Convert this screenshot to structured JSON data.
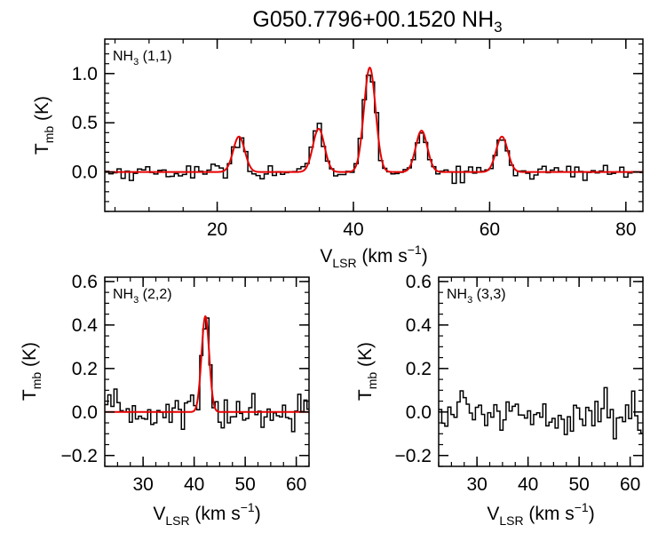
{
  "title": {
    "main": "G050.7796+00.1520 NH",
    "sub": "3"
  },
  "colors": {
    "data": "#000000",
    "fit": "#e60000",
    "axes": "#000000"
  },
  "chart_data": [
    {
      "type": "line",
      "panel": "top",
      "label": {
        "species": "NH",
        "sub": "3",
        "transition": "(1,1)"
      },
      "xlabel": {
        "main": "V",
        "sub": "LSR",
        "unit": "(km s",
        "exp": "−1",
        "close": ")"
      },
      "ylabel": {
        "main": "T",
        "sub": "mb",
        "unit": "(K)"
      },
      "xlim": [
        3.5,
        82.5
      ],
      "ylim": [
        -0.4,
        1.35
      ],
      "xticks": [
        20,
        40,
        60,
        80
      ],
      "xtick_labels": [
        "20",
        "40",
        "60",
        "80"
      ],
      "yticks": [
        0.0,
        0.5,
        1.0
      ],
      "ytick_labels": [
        "0.0",
        "0.5",
        "1.0"
      ],
      "x_minor": 5,
      "y_minor": 0.1,
      "noise_sigma": 0.04,
      "channel_width": 0.6,
      "fit_components": [
        {
          "center": 23.2,
          "amplitude": 0.36,
          "sigma": 0.85
        },
        {
          "center": 34.9,
          "amplitude": 0.44,
          "sigma": 0.85
        },
        {
          "center": 42.4,
          "amplitude": 1.06,
          "sigma": 0.85
        },
        {
          "center": 50.0,
          "amplitude": 0.42,
          "sigma": 0.85
        },
        {
          "center": 61.8,
          "amplitude": 0.36,
          "sigma": 0.85
        }
      ]
    },
    {
      "type": "line",
      "panel": "bottom-left",
      "label": {
        "species": "NH",
        "sub": "3",
        "transition": "(2,2)"
      },
      "xlabel": {
        "main": "V",
        "sub": "LSR",
        "unit": "(km s",
        "exp": "−1",
        "close": ")"
      },
      "ylabel": {
        "main": "T",
        "sub": "mb",
        "unit": "(K)"
      },
      "xlim": [
        22.5,
        62.5
      ],
      "ylim": [
        -0.25,
        0.62
      ],
      "xticks": [
        30,
        40,
        50,
        60
      ],
      "xtick_labels": [
        "30",
        "40",
        "50",
        "60"
      ],
      "yticks": [
        -0.2,
        0.0,
        0.2,
        0.4,
        0.6
      ],
      "ytick_labels": [
        "−0.2",
        "0.0",
        "0.2",
        "0.4",
        "0.6"
      ],
      "x_minor": 2.5,
      "y_minor": 0.05,
      "noise_sigma": 0.045,
      "channel_width": 0.6,
      "fit_components": [
        {
          "center": 42.2,
          "amplitude": 0.44,
          "sigma": 0.75
        }
      ]
    },
    {
      "type": "line",
      "panel": "bottom-right",
      "label": {
        "species": "NH",
        "sub": "3",
        "transition": "(3,3)"
      },
      "xlabel": {
        "main": "V",
        "sub": "LSR",
        "unit": "(km s",
        "exp": "−1",
        "close": ")"
      },
      "ylabel": {
        "main": "T",
        "sub": "mb",
        "unit": "(K)"
      },
      "xlim": [
        22.5,
        62.5
      ],
      "ylim": [
        -0.25,
        0.62
      ],
      "xticks": [
        30,
        40,
        50,
        60
      ],
      "xtick_labels": [
        "30",
        "40",
        "50",
        "60"
      ],
      "yticks": [
        -0.2,
        0.0,
        0.2,
        0.4,
        0.6
      ],
      "ytick_labels": [
        "−0.2",
        "0.0",
        "0.2",
        "0.4",
        "0.6"
      ],
      "x_minor": 2.5,
      "y_minor": 0.05,
      "noise_sigma": 0.05,
      "channel_width": 0.6,
      "fit_components": []
    }
  ]
}
